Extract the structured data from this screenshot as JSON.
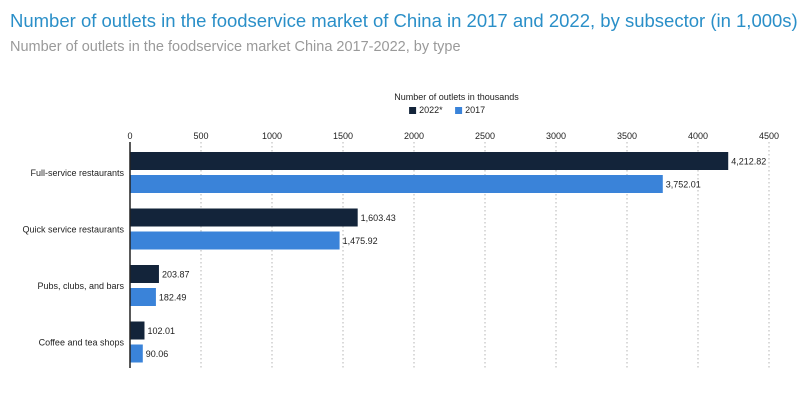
{
  "page": {
    "title": "Number of outlets in the foodservice market of China in 2017 and 2022, by subsector (in 1,000s)",
    "subtitle": "Number of outlets in the foodservice market China 2017-2022, by type"
  },
  "colors": {
    "title": "#2a8fc8",
    "subtitle": "#9a9a9a",
    "series_2022": "#13243a",
    "series_2017": "#3a83d9",
    "axis": "#222222",
    "grid": "#b5b5b5"
  },
  "chart_data": {
    "type": "bar",
    "orientation": "horizontal",
    "xlabel": "Number of outlets in thousands",
    "xlim": [
      0,
      4500
    ],
    "x_ticks": [
      "0",
      "500",
      "1000",
      "1500",
      "2000",
      "2500",
      "3000",
      "3500",
      "4000",
      "4500"
    ],
    "x_tick_values": [
      0,
      500,
      1000,
      1500,
      2000,
      2500,
      3000,
      3500,
      4000,
      4500
    ],
    "grid": "vertical dotted",
    "legend_position": "top-center",
    "categories": [
      "Full-service restaurants",
      "Quick service restaurants",
      "Pubs, clubs, and bars",
      "Coffee and tea shops"
    ],
    "series": [
      {
        "name": "2022*",
        "color": "#13243a",
        "values": [
          4212.82,
          1603.43,
          203.87,
          102.01
        ],
        "labels": [
          "4,212.82",
          "1,603.43",
          "203.87",
          "102.01"
        ]
      },
      {
        "name": "2017",
        "color": "#3a83d9",
        "values": [
          3752.01,
          1475.92,
          182.49,
          90.06
        ],
        "labels": [
          "3,752.01",
          "1,475.92",
          "182.49",
          "90.06"
        ]
      }
    ]
  }
}
